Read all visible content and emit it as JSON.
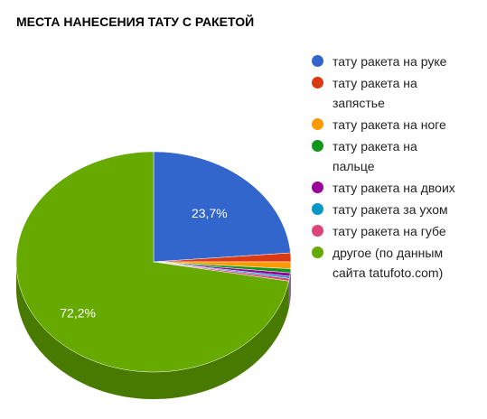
{
  "chart_data": {
    "type": "pie3d",
    "title": "МЕСТА НАНЕСЕНИЯ ТАТУ С РАКЕТОЙ",
    "categories": [
      "тату ракета на руке",
      "тату ракета на запястье",
      "тату ракета на ноге",
      "тату ракета на пальце",
      "тату ракета на двоих",
      "тату ракета за ухом",
      "тату ракета на губе",
      "другое (по данным сайта tatufoto.com)"
    ],
    "values": [
      23.7,
      1.3,
      1.0,
      0.6,
      0.5,
      0.3,
      0.4,
      72.2
    ],
    "value_labels": [
      "23,7%",
      null,
      null,
      null,
      null,
      null,
      null,
      "72,2%"
    ],
    "colors": [
      "#3366cc",
      "#dc3912",
      "#ff9900",
      "#109618",
      "#990099",
      "#0099c6",
      "#dd4477",
      "#66aa00"
    ],
    "legend": "right"
  }
}
